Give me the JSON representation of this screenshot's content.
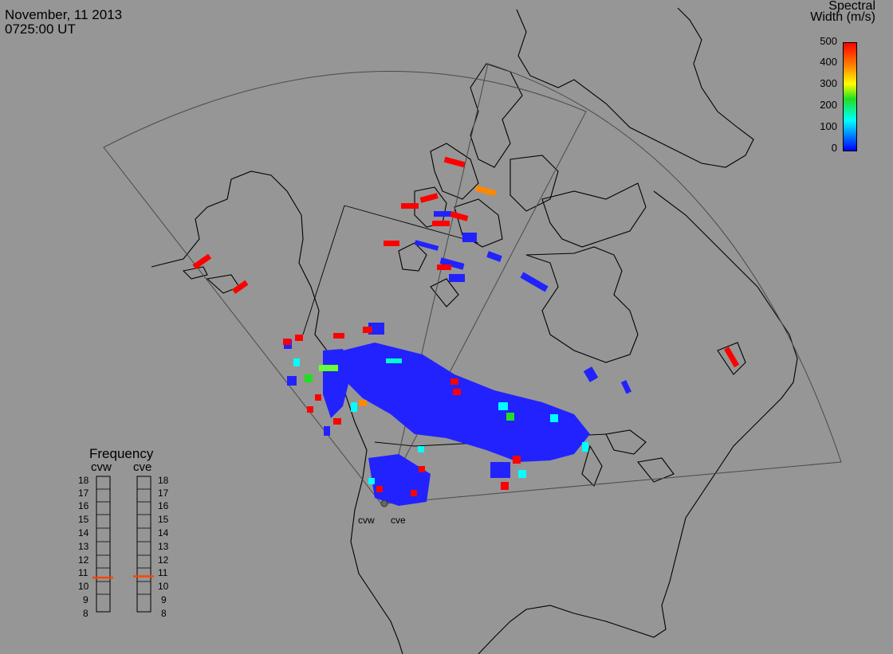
{
  "header": {
    "date": "November, 11 2013",
    "time": "0725:00 UT"
  },
  "colorbar": {
    "title_line1": "Spectral",
    "title_line2": "Width (m/s)",
    "ticks": [
      "500",
      "400",
      "300",
      "200",
      "100",
      "0"
    ],
    "min": 0,
    "max": 500
  },
  "frequency_panel": {
    "title": "Frequency",
    "columns": [
      "cvw",
      "cve"
    ],
    "ticks": [
      "18",
      "17",
      "16",
      "15",
      "14",
      "13",
      "12",
      "11",
      "10",
      "9",
      "8"
    ],
    "indicators": [
      {
        "radar": "cvw",
        "value_mhz": 10.7,
        "color": "#ff4400"
      },
      {
        "radar": "cve",
        "value_mhz": 10.8,
        "color": "#ff4400"
      }
    ]
  },
  "radar_sites": [
    {
      "code": "cvw"
    },
    {
      "code": "cve"
    }
  ],
  "colors": {
    "background": "#969696",
    "coastline": "#000000",
    "field_of_view": "#505050",
    "low_width": "#2222ff",
    "high_width": "#ff0000"
  }
}
